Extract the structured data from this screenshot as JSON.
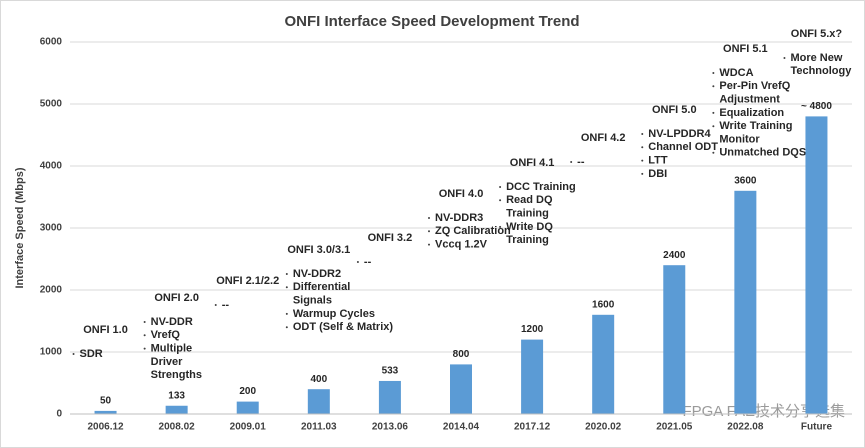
{
  "chart_data": {
    "type": "bar",
    "title": "ONFI Interface Speed Development Trend",
    "y_label": "Interface Speed (Mbps)",
    "categories": [
      "2006.12",
      "2008.02",
      "2009.01",
      "2011.03",
      "2013.06",
      "2014.04",
      "2017.12",
      "2020.02",
      "2021.05",
      "2022.08",
      "Future"
    ],
    "values": [
      50,
      133,
      200,
      400,
      533,
      800,
      1200,
      1600,
      2400,
      3600,
      4800
    ],
    "value_labels": [
      "50",
      "133",
      "200",
      "400",
      "533",
      "800",
      "1200",
      "1600",
      "2400",
      "3600",
      "~ 4800"
    ],
    "color": "#5b9bd5",
    "ylim": [
      0,
      6000
    ],
    "yticks": [
      0,
      1000,
      2000,
      3000,
      4000,
      5000,
      6000
    ],
    "grid": true,
    "annotations": [
      {
        "label": "ONFI 1.0",
        "features": [
          [
            "SDR"
          ]
        ]
      },
      {
        "label": "ONFI 2.0",
        "features": [
          [
            "NV-DDR"
          ],
          [
            "VrefQ"
          ],
          [
            "Multiple",
            "Driver",
            "Strengths"
          ]
        ]
      },
      {
        "label": "ONFI 2.1/2.2",
        "features": [
          [
            "--"
          ]
        ]
      },
      {
        "label": "ONFI 3.0/3.1",
        "features": [
          [
            "NV-DDR2"
          ],
          [
            "Differential",
            "Signals"
          ],
          [
            "Warmup Cycles"
          ],
          [
            "ODT (Self & Matrix)"
          ]
        ]
      },
      {
        "label": "ONFI 3.2",
        "features": [
          [
            "--"
          ]
        ]
      },
      {
        "label": "ONFI 4.0",
        "features": [
          [
            "NV-DDR3"
          ],
          [
            "ZQ Calibration"
          ],
          [
            "Vccq 1.2V"
          ]
        ]
      },
      {
        "label": "ONFI 4.1",
        "features": [
          [
            "DCC Training"
          ],
          [
            "Read DQ",
            "Training"
          ],
          [
            "Write DQ",
            "Training"
          ]
        ]
      },
      {
        "label": "ONFI 4.2",
        "features": [
          [
            "--"
          ]
        ]
      },
      {
        "label": "ONFI 5.0",
        "features": [
          [
            "NV-LPDDR4"
          ],
          [
            "Channel ODT"
          ],
          [
            "LTT"
          ],
          [
            "DBI"
          ]
        ]
      },
      {
        "label": "ONFI 5.1",
        "features": [
          [
            "WDCA"
          ],
          [
            "Per-Pin VrefQ",
            "Adjustment"
          ],
          [
            "Equalization"
          ],
          [
            "Write Training",
            "Monitor"
          ],
          [
            "Unmatched DQS"
          ]
        ]
      },
      {
        "label": "ONFI 5.x?",
        "features": [
          [
            "More New",
            "Technology"
          ]
        ]
      }
    ],
    "watermark": "FPGA FAE技术分享选集"
  }
}
